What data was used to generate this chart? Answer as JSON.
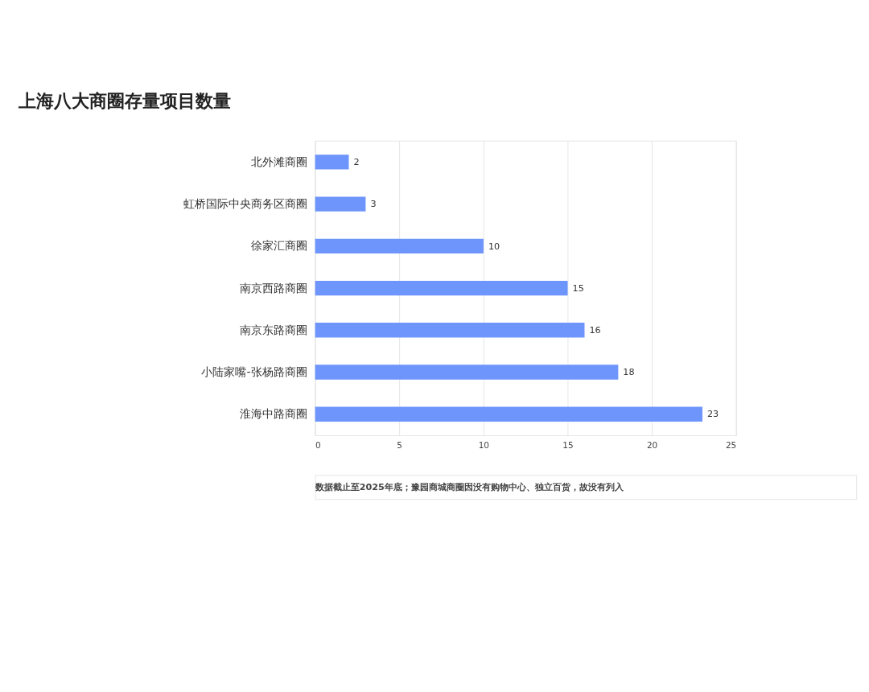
{
  "chart_data": {
    "type": "bar",
    "orientation": "horizontal",
    "title": "上海八大商圈存量项目数量",
    "categories": [
      "北外滩商圈",
      "虹桥国际中央商务区商圈",
      "徐家汇商圈",
      "南京西路商圈",
      "南京东路商圈",
      "小陆家嘴-张杨路商圈",
      "淮海中路商圈"
    ],
    "values": [
      2,
      3,
      10,
      15,
      16,
      18,
      23
    ],
    "color": "#6e95fc",
    "xlim": [
      0,
      25
    ],
    "xticks": [
      0,
      5,
      10,
      15,
      20,
      25
    ],
    "grid": "x",
    "data_labels": true,
    "annotations": [
      "数据截止至2025年底；",
      "豫园商城商圈因没有购物中心、独立百货，故没有列入"
    ]
  }
}
